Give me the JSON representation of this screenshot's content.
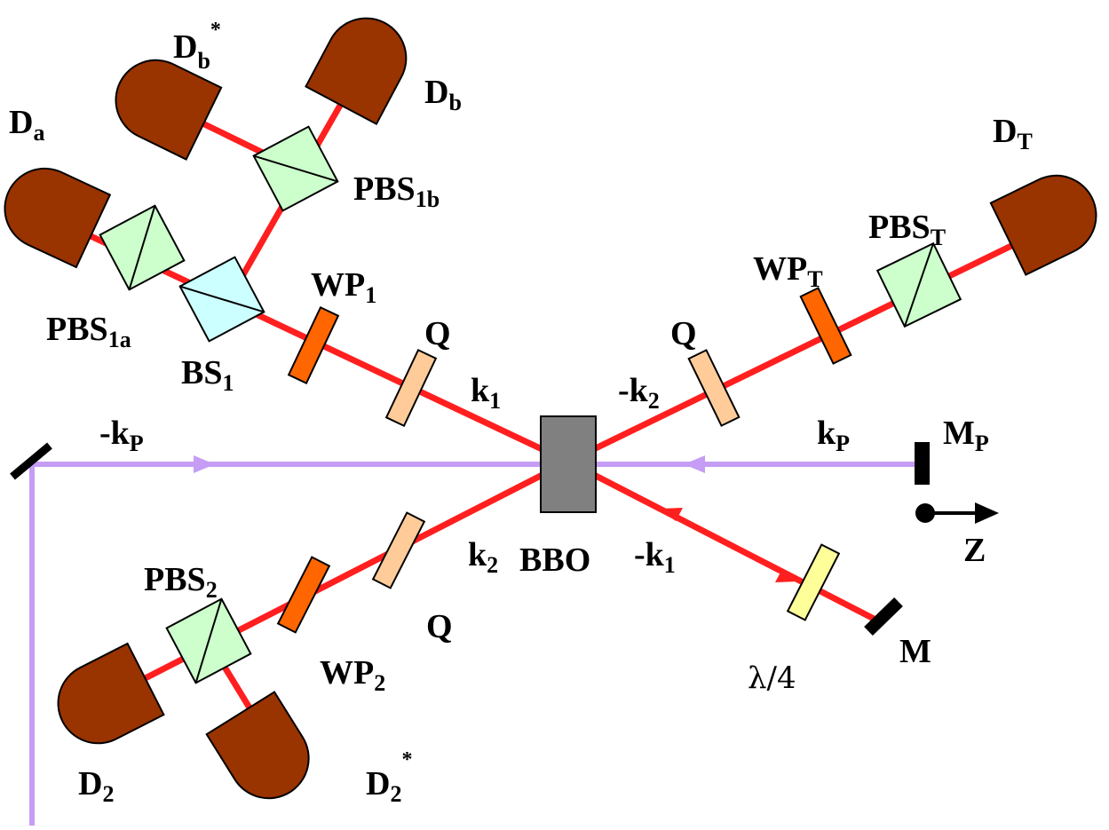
{
  "colors": {
    "beam": "#ff1f1f",
    "pump": "#c59df5",
    "detector": "#993300",
    "pbs": "#ccffcc",
    "bs": "#ccffff",
    "waveplate": "#ff6600",
    "quartz": "#ffcc99",
    "quarter_wave": "#ffff99",
    "crystal": "#808080",
    "mirror": "#000000"
  },
  "labels": {
    "d_b_star": {
      "main": "D",
      "sub": "b",
      "sup": "*"
    },
    "d_b": {
      "main": "D",
      "sub": "b"
    },
    "d_a": {
      "main": "D",
      "sub": "a"
    },
    "d_t": {
      "main": "D",
      "sub": "T"
    },
    "pbs_1b": {
      "main": "PBS",
      "sub": "1b"
    },
    "pbs_t": {
      "main": "PBS",
      "sub": "T"
    },
    "wp_1": {
      "main": "WP",
      "sub": "1"
    },
    "wp_t": {
      "main": "WP",
      "sub": "T"
    },
    "pbs_1a": {
      "main": "PBS",
      "sub": "1a"
    },
    "bs_1": {
      "main": "BS",
      "sub": "1"
    },
    "q_upper_left": {
      "main": "Q"
    },
    "q_upper_right": {
      "main": "Q"
    },
    "k_1": {
      "main": "k",
      "sub": "1"
    },
    "minus_k_2": {
      "main": "-k",
      "sub": "2"
    },
    "minus_k_p": {
      "main": "-k",
      "sub": "P"
    },
    "k_p": {
      "main": "k",
      "sub": "P"
    },
    "m_p": {
      "main": "M",
      "sub": "P"
    },
    "z_axis": {
      "main": "Z"
    },
    "pbs_2": {
      "main": "PBS",
      "sub": "2"
    },
    "k_2": {
      "main": "k",
      "sub": "2"
    },
    "bbo": {
      "main": "BBO"
    },
    "minus_k_1": {
      "main": "-k",
      "sub": "1"
    },
    "q_lower": {
      "main": "Q"
    },
    "lambda_4": {
      "main": "λ/4"
    },
    "mirror_m": {
      "main": "M"
    },
    "wp_2": {
      "main": "WP",
      "sub": "2"
    },
    "d_2": {
      "main": "D",
      "sub": "2"
    },
    "d_2_star": {
      "main": "D",
      "sub": "2",
      "sup": "*"
    }
  }
}
